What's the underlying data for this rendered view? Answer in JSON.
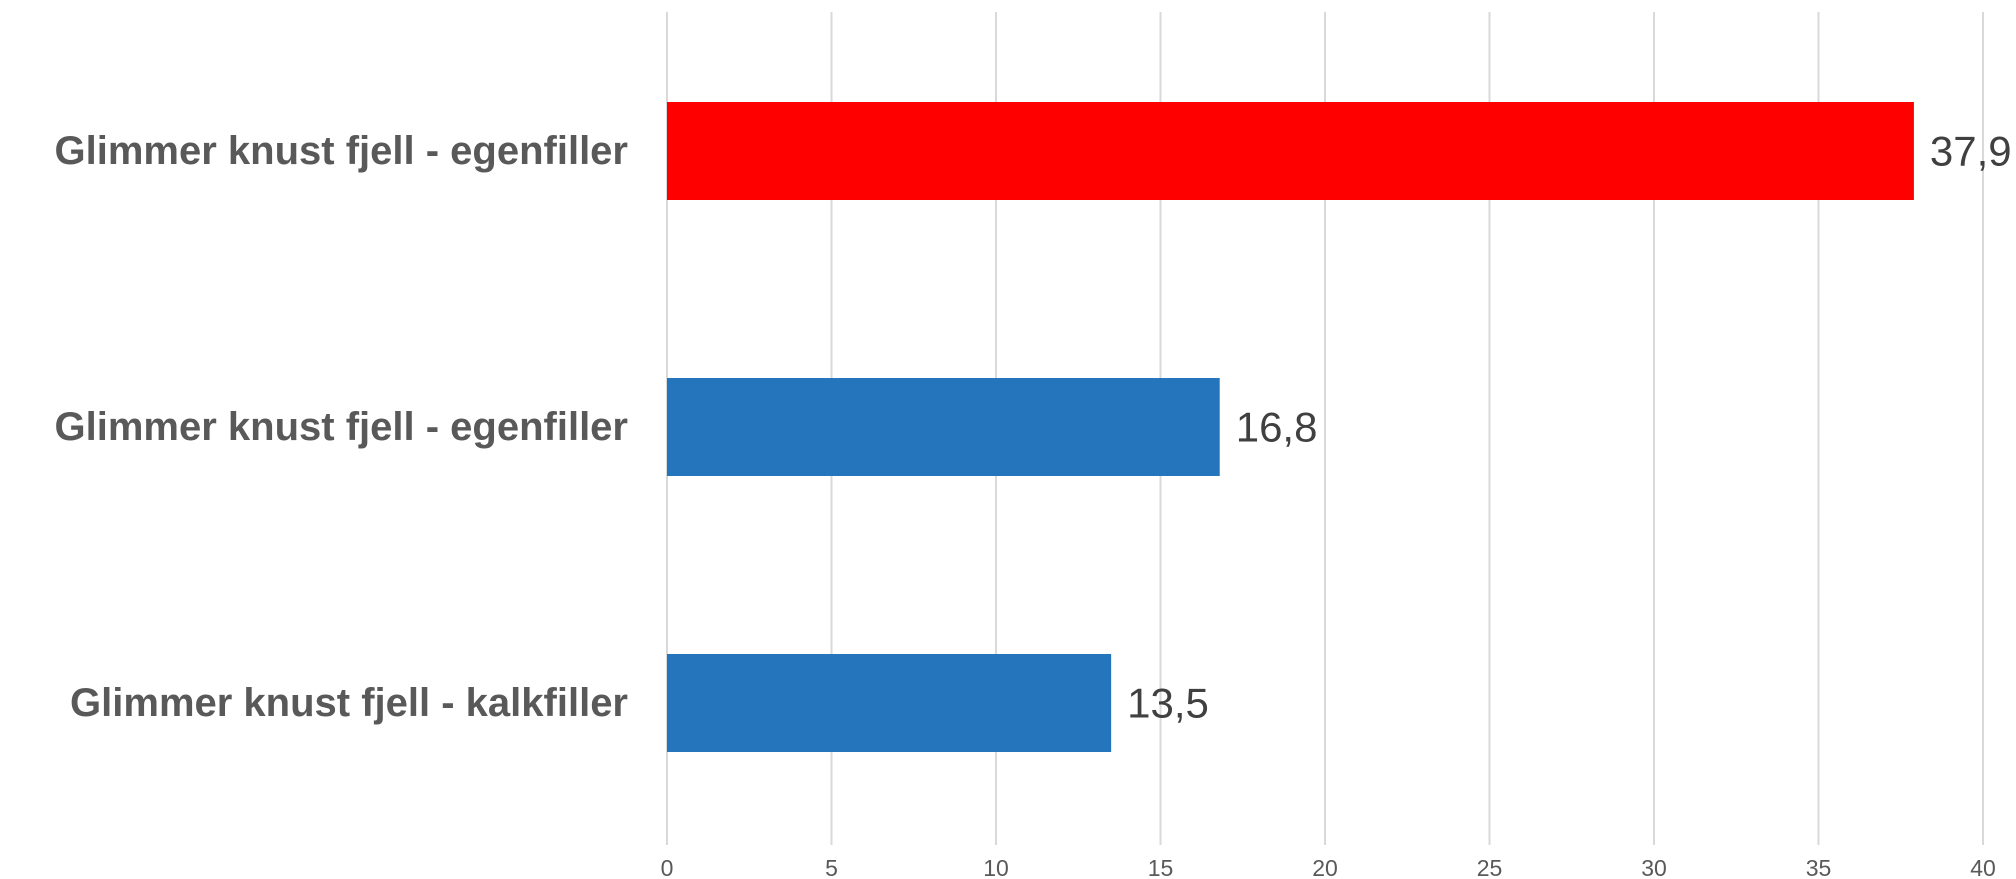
{
  "chart_data": {
    "type": "bar",
    "orientation": "horizontal",
    "categories": [
      "Glimmer knust fjell - egenfiller",
      "Glimmer knust fjell - egenfiller",
      "Glimmer knust fjell - kalkfiller"
    ],
    "values": [
      37.9,
      16.8,
      13.5
    ],
    "data_labels": [
      "37,9",
      "16,8",
      "13,5"
    ],
    "bar_colors": [
      "#ff0000",
      "#2475bc",
      "#2475bc"
    ],
    "xlim": [
      0,
      40
    ],
    "xticks": [
      0,
      5,
      10,
      15,
      20,
      25,
      30,
      35,
      40
    ],
    "xtick_labels": [
      "0",
      "5",
      "10",
      "15",
      "20",
      "25",
      "30",
      "35",
      "40"
    ],
    "grid": "vertical",
    "legend": "none"
  }
}
